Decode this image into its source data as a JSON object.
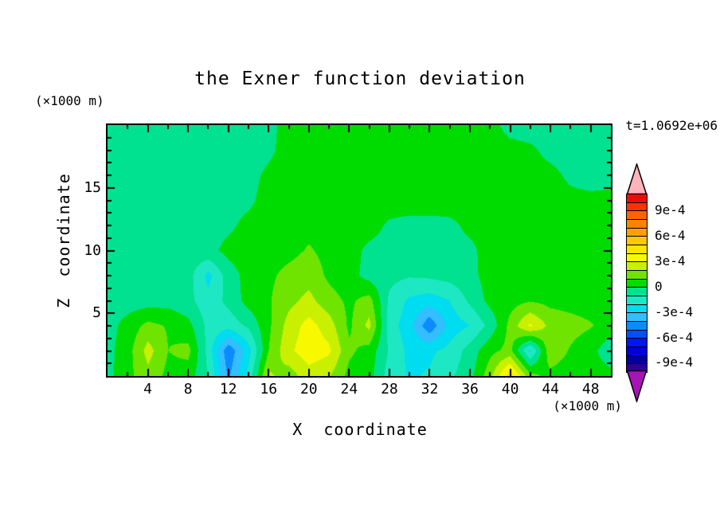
{
  "chart": {
    "title": "the Exner function deviation",
    "timestamp": "t=1.0692e+06"
  },
  "axes": {
    "x_label": "X  coordinate",
    "y_label": "Z  coordinate",
    "x_units": "(×1000 m)",
    "y_units": "(×1000 m)",
    "x_range": [
      0,
      50
    ],
    "y_range": [
      0,
      20
    ],
    "x_ticks": [
      4,
      8,
      12,
      16,
      20,
      24,
      28,
      32,
      36,
      40,
      44,
      48
    ],
    "x_minor_step": 2,
    "y_ticks": [
      5,
      10,
      15
    ],
    "y_minor_step": 1
  },
  "colorbar": {
    "arrow_top_color": "#FFB4B9",
    "arrow_bottom_color": "#A714B4",
    "segments_top_to_bottom": [
      "#F00A0A",
      "#FF3200",
      "#FF6400",
      "#FF8200",
      "#FFA000",
      "#FFC800",
      "#FFE400",
      "#F8F800",
      "#C8F000",
      "#6FE400",
      "#00DC00",
      "#00E28F",
      "#1EE8C3",
      "#00DCF0",
      "#32BEFF",
      "#0A8CFF",
      "#0050FF",
      "#0014FF",
      "#0000D7",
      "#0000A0",
      "#2D0096"
    ],
    "labels": [
      {
        "text": "9e-4",
        "boundary_offset": 2
      },
      {
        "text": "6e-4",
        "boundary_offset": 5
      },
      {
        "text": "3e-4",
        "boundary_offset": 8
      },
      {
        "text": "0",
        "boundary_offset": 11
      },
      {
        "text": "-3e-4",
        "boundary_offset": 14
      },
      {
        "text": "-6e-4",
        "boundary_offset": 17
      },
      {
        "text": "-9e-4",
        "boundary_offset": 20
      }
    ]
  },
  "chart_data": {
    "type": "heatmap",
    "title": "the Exner function deviation",
    "xlabel": "X coordinate (x1000 m)",
    "ylabel": "Z coordinate (x1000 m)",
    "value_units": "1e-4",
    "contour_interval": 1,
    "band_min_k": -10,
    "band_colors_low_to_high": [
      "#2D0096",
      "#0000A0",
      "#0000D7",
      "#0014FF",
      "#0050FF",
      "#0A8CFF",
      "#32BEFF",
      "#00DCF0",
      "#1EE8C3",
      "#00E28F",
      "#00DC00",
      "#6FE400",
      "#C8F000",
      "#F8F800",
      "#FFE400",
      "#FFC800",
      "#FFA000",
      "#FF8200",
      "#FF6400",
      "#FF3200",
      "#F00A0A"
    ],
    "x": [
      0,
      2,
      4,
      6,
      8,
      10,
      12,
      14,
      16,
      18,
      20,
      22,
      24,
      26,
      28,
      30,
      32,
      34,
      36,
      38,
      40,
      42,
      44,
      46,
      48,
      50
    ],
    "z_top_to_bottom": [
      20,
      18,
      16,
      14,
      12,
      10,
      8,
      6,
      4,
      2,
      0
    ],
    "values": [
      [
        -0.5,
        -0.5,
        -0.5,
        -0.5,
        -0.5,
        -0.5,
        -0.5,
        -0.5,
        -0.3,
        0.4,
        0.5,
        0.5,
        0.5,
        0.5,
        0.5,
        0.5,
        0.5,
        0.5,
        0.4,
        0.3,
        -0.3,
        -0.5,
        -0.5,
        -0.5,
        -0.5,
        -0.5
      ],
      [
        -0.5,
        -0.5,
        -0.5,
        -0.5,
        -0.5,
        -0.5,
        -0.5,
        -0.5,
        -0.2,
        0.4,
        0.5,
        0.6,
        0.6,
        0.6,
        0.6,
        0.6,
        0.5,
        0.5,
        0.5,
        0.4,
        0.3,
        0.2,
        -0.3,
        -0.5,
        -0.5,
        -0.5
      ],
      [
        -0.5,
        -0.5,
        -0.5,
        -0.5,
        -0.5,
        -0.5,
        -0.5,
        -0.3,
        0.2,
        0.5,
        0.6,
        0.6,
        0.6,
        0.6,
        0.6,
        0.6,
        0.6,
        0.5,
        0.5,
        0.5,
        0.4,
        0.4,
        0.3,
        -0.2,
        -0.5,
        -0.5
      ],
      [
        -0.5,
        -0.5,
        -0.5,
        -0.5,
        -0.5,
        -0.5,
        -0.4,
        -0.2,
        0.4,
        0.6,
        0.6,
        0.7,
        0.7,
        0.7,
        0.6,
        0.6,
        0.6,
        0.6,
        0.5,
        0.5,
        0.5,
        0.4,
        0.4,
        0.3,
        0.3,
        0.4
      ],
      [
        -0.5,
        -0.5,
        -0.5,
        -0.5,
        -0.5,
        -0.4,
        -0.2,
        0.3,
        0.5,
        0.6,
        0.7,
        0.7,
        0.6,
        0.5,
        -0.2,
        -0.4,
        -0.4,
        -0.3,
        0.3,
        0.5,
        0.6,
        0.5,
        0.5,
        0.5,
        0.4,
        0.4
      ],
      [
        -0.5,
        -0.5,
        -0.5,
        -0.5,
        -0.4,
        -0.3,
        0.3,
        0.5,
        0.6,
        0.7,
        1.1,
        0.7,
        0.5,
        -0.3,
        -0.5,
        -0.6,
        -0.6,
        -0.5,
        -0.3,
        0.5,
        0.6,
        0.6,
        0.5,
        0.5,
        0.4,
        0.4
      ],
      [
        -0.5,
        -0.5,
        -0.5,
        -0.5,
        -0.6,
        -2.3,
        -0.5,
        0.4,
        0.8,
        1.3,
        1.6,
        0.8,
        0.4,
        -0.4,
        -0.7,
        -0.9,
        -0.8,
        -0.6,
        -0.3,
        0.4,
        0.5,
        0.6,
        0.5,
        0.5,
        0.4,
        0.4
      ],
      [
        -0.5,
        -0.5,
        -0.5,
        -0.4,
        -0.7,
        -1.7,
        -0.7,
        0.4,
        0.9,
        1.7,
        2.3,
        1.4,
        0.8,
        1.4,
        -1.2,
        -2.2,
        -2.5,
        -2.0,
        -0.8,
        0.3,
        0.6,
        0.9,
        0.7,
        0.6,
        0.5,
        0.4
      ],
      [
        -0.4,
        0.4,
        1.3,
        0.9,
        0.3,
        -1.3,
        -1.6,
        -0.8,
        0.8,
        2.4,
        3.4,
        2.5,
        0.8,
        2.3,
        -1.5,
        -2.6,
        -4.8,
        -2.6,
        -2.0,
        -0.7,
        1.3,
        3.2,
        1.7,
        1.4,
        1.1,
        0.5
      ],
      [
        -0.3,
        0.6,
        2.4,
        1.0,
        1.3,
        -1.4,
        -4.8,
        -2.4,
        1.0,
        2.8,
        3.6,
        3.2,
        1.2,
        0.6,
        -1.1,
        -2.3,
        -2.2,
        -1.7,
        -0.6,
        0.7,
        1.3,
        -2.2,
        1.7,
        0.9,
        0.3,
        -0.6
      ],
      [
        -0.3,
        0.7,
        1.7,
        0.7,
        0.5,
        -1.0,
        -4.2,
        -1.7,
        2.2,
        1.5,
        2.6,
        2.1,
        0.7,
        0.4,
        -1.5,
        -2.1,
        -1.9,
        -1.2,
        -0.4,
        1.6,
        4.6,
        1.3,
        0.7,
        0.5,
        0.4,
        0.3
      ]
    ]
  }
}
